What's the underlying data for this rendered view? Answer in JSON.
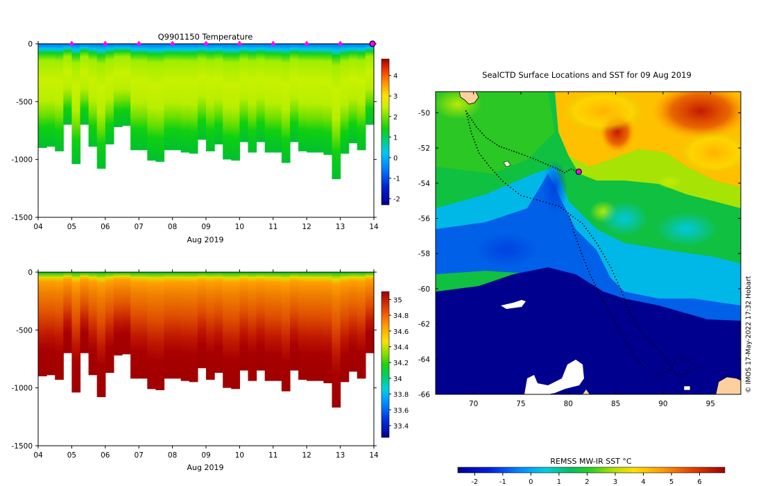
{
  "credit": "© IMOS 17-May-2022 17:32 Hobart",
  "chart_data": [
    {
      "type": "heatmap",
      "title": "Q9901150  Temperature",
      "xlabel": "Aug 2019",
      "ylabel": "",
      "x_ticks": [
        "04",
        "05",
        "06",
        "07",
        "08",
        "09",
        "10",
        "11",
        "12",
        "13",
        "14"
      ],
      "y_ticks": [
        0,
        -500,
        -1000,
        -1500
      ],
      "xlim": [
        "2019-08-04",
        "2019-08-14"
      ],
      "ylim": [
        -1500,
        0
      ],
      "colorbar_ticks": [
        4,
        3,
        2,
        1,
        0,
        -1,
        -2
      ],
      "colorbar_range": [
        -2.3,
        4.8
      ],
      "profile_marker_days": [
        5,
        6,
        7,
        8,
        9,
        10,
        11,
        12,
        13
      ],
      "last_profile_day": 14,
      "grid": false,
      "colors": {
        "surface": "#1e90ff",
        "mid": "#bff200",
        "deep": "#10d010",
        "marker": "#ff00ff"
      }
    },
    {
      "type": "heatmap",
      "title": "",
      "xlabel": "Aug 2019",
      "ylabel": "",
      "x_ticks": [
        "04",
        "05",
        "06",
        "07",
        "08",
        "09",
        "10",
        "11",
        "12",
        "13",
        "14"
      ],
      "y_ticks": [
        0,
        -500,
        -1000,
        -1500
      ],
      "xlim": [
        "2019-08-04",
        "2019-08-14"
      ],
      "ylim": [
        -1500,
        0
      ],
      "colorbar_ticks": [
        35,
        34.8,
        34.6,
        34.4,
        34.2,
        34,
        33.8,
        33.6,
        33.4
      ],
      "colorbar_range": [
        33.25,
        35.1
      ],
      "grid": false,
      "colors": {
        "surface": "#20d010",
        "mid": "#f08000",
        "deep": "#aa0000"
      }
    },
    {
      "type": "heatmap",
      "title": "SealCTD Surface Locations and SST for 09 Aug 2019",
      "xlabel": "",
      "ylabel": "",
      "x_ticks": [
        70,
        75,
        80,
        85,
        90,
        95
      ],
      "y_ticks": [
        -50,
        -52,
        -54,
        -56,
        -58,
        -60,
        -62,
        -64,
        -66
      ],
      "xlim": [
        66,
        98.2
      ],
      "ylim": [
        -66,
        -48.8
      ],
      "colorbar_label": "REMSS MW-IR SST °C",
      "colorbar_ticks": [
        -2,
        -1,
        0,
        1,
        2,
        3,
        4,
        5,
        6
      ],
      "colorbar_range": [
        -2.6,
        6.9
      ],
      "current_position": {
        "lon": 81.1,
        "lat": -53.35
      },
      "track": [
        [
          69.2,
          -49.9
        ],
        [
          70.3,
          -50.8
        ],
        [
          71.3,
          -51.4
        ],
        [
          72.7,
          -51.9
        ],
        [
          74.8,
          -52.3
        ],
        [
          76.3,
          -52.6
        ],
        [
          77.6,
          -52.9
        ],
        [
          78.9,
          -53.2
        ],
        [
          79.6,
          -53.4
        ],
        [
          80.3,
          -53.2
        ],
        [
          81.1,
          -53.35
        ]
      ],
      "track2": [
        [
          69.2,
          -49.9
        ],
        [
          69.8,
          -51.2
        ],
        [
          70.6,
          -52.3
        ],
        [
          71.6,
          -53.0
        ],
        [
          73.1,
          -53.9
        ],
        [
          75.0,
          -54.7
        ],
        [
          77.0,
          -55.0
        ],
        [
          79.0,
          -55.3
        ],
        [
          80.0,
          -55.7
        ],
        [
          81.5,
          -56.3
        ],
        [
          83.0,
          -57.4
        ],
        [
          84.5,
          -58.8
        ],
        [
          85.5,
          -60.0
        ],
        [
          86.5,
          -61.4
        ],
        [
          87.5,
          -62.3
        ],
        [
          88.6,
          -63.0
        ],
        [
          89.8,
          -63.6
        ],
        [
          90.6,
          -64.3
        ],
        [
          91.5,
          -64.9
        ],
        [
          92.5,
          -64.8
        ],
        [
          93.5,
          -64.5
        ],
        [
          92.8,
          -64.1
        ],
        [
          91.5,
          -63.9
        ],
        [
          90.8,
          -64.6
        ],
        [
          89.5,
          -64.9
        ],
        [
          88.8,
          -65.3
        ]
      ],
      "track3": [
        [
          80.0,
          -55.7
        ],
        [
          80.6,
          -56.8
        ],
        [
          81.4,
          -58.0
        ],
        [
          82.3,
          -59.2
        ],
        [
          83.4,
          -60.4
        ],
        [
          84.6,
          -61.6
        ],
        [
          85.8,
          -62.8
        ],
        [
          87.0,
          -63.8
        ],
        [
          88.2,
          -64.6
        ]
      ],
      "colors": {
        "warm": "#b01000",
        "mid": "#00b030",
        "cold": "#00008f",
        "land": "#fdd0a0",
        "marker": "#ff00ff"
      }
    }
  ]
}
